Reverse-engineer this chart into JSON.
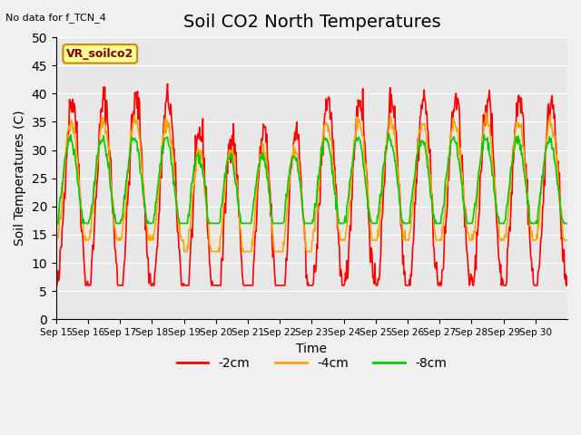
{
  "title": "Soil CO2 North Temperatures",
  "subtitle": "No data for f_TCN_4",
  "xlabel": "Time",
  "ylabel": "Soil Temperatures (C)",
  "legend_label": "VR_soilco2",
  "ylim": [
    0,
    50
  ],
  "yticks": [
    0,
    5,
    10,
    15,
    20,
    25,
    30,
    35,
    40,
    45,
    50
  ],
  "date_labels": [
    "Sep 15",
    "Sep 16",
    "Sep 17",
    "Sep 18",
    "Sep 19",
    "Sep 20",
    "Sep 21",
    "Sep 22",
    "Sep 23",
    "Sep 24",
    "Sep 25",
    "Sep 26",
    "Sep 27",
    "Sep 28",
    "Sep 29",
    "Sep 30"
  ],
  "series_labels": [
    "-2cm",
    "-4cm",
    "-8cm"
  ],
  "series_colors": [
    "#ff0000",
    "#ffa500",
    "#00cc00"
  ],
  "plot_bg_color": "#e8e8e8",
  "fig_bg_color": "#f0f0f0",
  "title_fontsize": 14,
  "axis_fontsize": 10,
  "legend_box_color": "#ffff99",
  "legend_box_edge": "#cc8800"
}
